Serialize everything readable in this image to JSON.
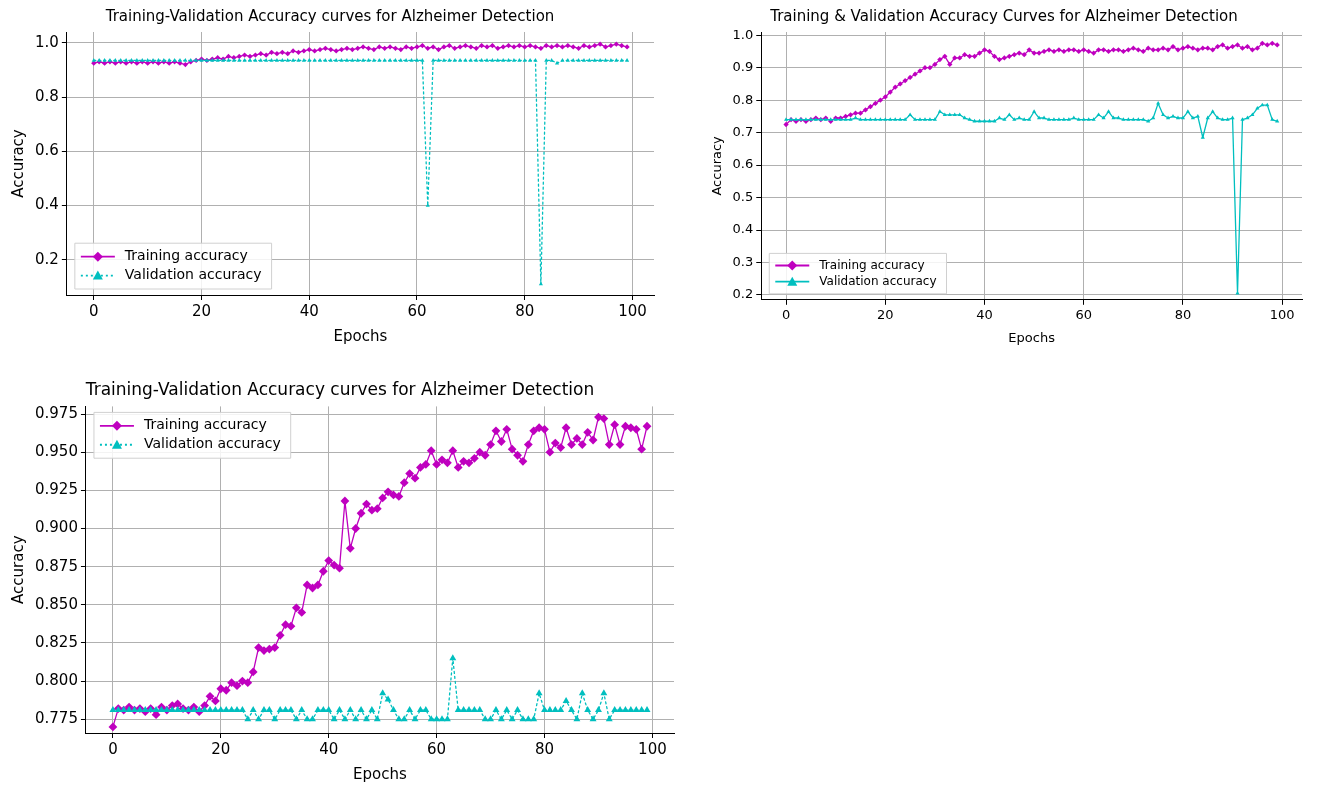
{
  "chart_data": [
    {
      "type": "line",
      "title": "Training-Validation Accuracy curves for Alzheimer Detection",
      "xlabel": "Epochs",
      "ylabel": "Accuracy",
      "x": [
        0,
        1,
        2,
        3,
        4,
        5,
        6,
        7,
        8,
        9,
        10,
        11,
        12,
        13,
        14,
        15,
        16,
        17,
        18,
        19,
        20,
        21,
        22,
        23,
        24,
        25,
        26,
        27,
        28,
        29,
        30,
        31,
        32,
        33,
        34,
        35,
        36,
        37,
        38,
        39,
        40,
        41,
        42,
        43,
        44,
        45,
        46,
        47,
        48,
        49,
        50,
        51,
        52,
        53,
        54,
        55,
        56,
        57,
        58,
        59,
        60,
        61,
        62,
        63,
        64,
        65,
        66,
        67,
        68,
        69,
        70,
        71,
        72,
        73,
        74,
        75,
        76,
        77,
        78,
        79,
        80,
        81,
        82,
        83,
        84,
        85,
        86,
        87,
        88,
        89,
        90,
        91,
        92,
        93,
        94,
        95,
        96,
        97,
        98,
        99
      ],
      "series": [
        {
          "name": "Training accuracy",
          "color": "#bf00bf",
          "marker": "diamond",
          "line_style": "solid",
          "values": [
            0.925,
            0.93,
            0.925,
            0.93,
            0.925,
            0.93,
            0.925,
            0.93,
            0.925,
            0.93,
            0.925,
            0.93,
            0.925,
            0.93,
            0.925,
            0.93,
            0.925,
            0.92,
            0.93,
            0.935,
            0.94,
            0.935,
            0.94,
            0.945,
            0.94,
            0.95,
            0.945,
            0.95,
            0.955,
            0.95,
            0.955,
            0.96,
            0.955,
            0.965,
            0.96,
            0.965,
            0.96,
            0.97,
            0.965,
            0.97,
            0.975,
            0.97,
            0.975,
            0.98,
            0.975,
            0.97,
            0.975,
            0.98,
            0.975,
            0.98,
            0.985,
            0.98,
            0.975,
            0.985,
            0.98,
            0.985,
            0.98,
            0.975,
            0.985,
            0.98,
            0.985,
            0.99,
            0.98,
            0.985,
            0.975,
            0.985,
            0.99,
            0.98,
            0.985,
            0.99,
            0.985,
            0.98,
            0.99,
            0.985,
            0.99,
            0.98,
            0.985,
            0.99,
            0.985,
            0.99,
            0.985,
            0.99,
            0.985,
            0.98,
            0.99,
            0.985,
            0.99,
            0.985,
            0.99,
            0.985,
            0.98,
            0.99,
            0.985,
            0.99,
            0.995,
            0.985,
            0.99,
            0.995,
            0.99,
            0.985
          ]
        },
        {
          "name": "Validation accuracy",
          "color": "#00bfbf",
          "marker": "triangle",
          "line_style": "dotted",
          "values": [
            0.935,
            0.935,
            0.935,
            0.935,
            0.935,
            0.935,
            0.935,
            0.935,
            0.935,
            0.935,
            0.935,
            0.935,
            0.935,
            0.935,
            0.935,
            0.935,
            0.935,
            0.935,
            0.935,
            0.935,
            0.935,
            0.935,
            0.935,
            0.935,
            0.935,
            0.935,
            0.935,
            0.935,
            0.935,
            0.935,
            0.935,
            0.935,
            0.935,
            0.935,
            0.935,
            0.935,
            0.935,
            0.935,
            0.935,
            0.935,
            0.935,
            0.935,
            0.935,
            0.935,
            0.935,
            0.935,
            0.935,
            0.935,
            0.935,
            0.935,
            0.935,
            0.935,
            0.935,
            0.935,
            0.935,
            0.935,
            0.935,
            0.935,
            0.935,
            0.935,
            0.935,
            0.935,
            0.4,
            0.935,
            0.935,
            0.935,
            0.935,
            0.935,
            0.935,
            0.935,
            0.935,
            0.935,
            0.935,
            0.935,
            0.935,
            0.935,
            0.935,
            0.935,
            0.935,
            0.935,
            0.935,
            0.935,
            0.935,
            0.11,
            0.935,
            0.935,
            0.925,
            0.935,
            0.935,
            0.935,
            0.935,
            0.935,
            0.935,
            0.935,
            0.935,
            0.935,
            0.935,
            0.935,
            0.935,
            0.935
          ]
        }
      ],
      "xlim": [
        -5,
        104
      ],
      "xticks": [
        0,
        20,
        40,
        60,
        80,
        100
      ],
      "ylim": [
        0.07,
        1.04
      ],
      "yticks": [
        {
          "value": 0.2,
          "label": "0.2"
        },
        {
          "value": 0.4,
          "label": "0.4"
        },
        {
          "value": 0.6,
          "label": "0.6"
        },
        {
          "value": 0.8,
          "label": "0.8"
        },
        {
          "value": 1.0,
          "label": "1.0"
        }
      ],
      "grid": true,
      "legend": "bottom left"
    },
    {
      "type": "line",
      "title": "Training & Validation Accuracy Curves for Alzheimer Detection",
      "xlabel": "Epochs",
      "ylabel": "Accuracy",
      "x": [
        0,
        1,
        2,
        3,
        4,
        5,
        6,
        7,
        8,
        9,
        10,
        11,
        12,
        13,
        14,
        15,
        16,
        17,
        18,
        19,
        20,
        21,
        22,
        23,
        24,
        25,
        26,
        27,
        28,
        29,
        30,
        31,
        32,
        33,
        34,
        35,
        36,
        37,
        38,
        39,
        40,
        41,
        42,
        43,
        44,
        45,
        46,
        47,
        48,
        49,
        50,
        51,
        52,
        53,
        54,
        55,
        56,
        57,
        58,
        59,
        60,
        61,
        62,
        63,
        64,
        65,
        66,
        67,
        68,
        69,
        70,
        71,
        72,
        73,
        74,
        75,
        76,
        77,
        78,
        79,
        80,
        81,
        82,
        83,
        84,
        85,
        86,
        87,
        88,
        89,
        90,
        91,
        92,
        93,
        94,
        95,
        96,
        97,
        98,
        99
      ],
      "series": [
        {
          "name": "Training accuracy",
          "color": "#bf00bf",
          "marker": "diamond",
          "line_style": "solid",
          "values": [
            0.725,
            0.74,
            0.735,
            0.74,
            0.735,
            0.74,
            0.745,
            0.74,
            0.745,
            0.735,
            0.745,
            0.745,
            0.75,
            0.755,
            0.76,
            0.76,
            0.77,
            0.78,
            0.79,
            0.8,
            0.81,
            0.825,
            0.84,
            0.85,
            0.86,
            0.87,
            0.88,
            0.89,
            0.9,
            0.9,
            0.91,
            0.925,
            0.935,
            0.91,
            0.93,
            0.93,
            0.94,
            0.935,
            0.935,
            0.945,
            0.955,
            0.95,
            0.935,
            0.925,
            0.93,
            0.935,
            0.94,
            0.945,
            0.94,
            0.955,
            0.945,
            0.945,
            0.95,
            0.955,
            0.95,
            0.955,
            0.95,
            0.955,
            0.955,
            0.95,
            0.955,
            0.95,
            0.945,
            0.955,
            0.955,
            0.95,
            0.955,
            0.955,
            0.95,
            0.955,
            0.96,
            0.955,
            0.95,
            0.96,
            0.955,
            0.955,
            0.96,
            0.955,
            0.965,
            0.955,
            0.96,
            0.965,
            0.96,
            0.955,
            0.96,
            0.96,
            0.955,
            0.965,
            0.97,
            0.96,
            0.965,
            0.97,
            0.96,
            0.965,
            0.955,
            0.96,
            0.975,
            0.97,
            0.975,
            0.97
          ]
        },
        {
          "name": "Validation accuracy",
          "color": "#00bfbf",
          "marker": "triangle",
          "line_style": "solid",
          "values": [
            0.74,
            0.74,
            0.74,
            0.74,
            0.74,
            0.74,
            0.74,
            0.74,
            0.74,
            0.74,
            0.74,
            0.74,
            0.74,
            0.74,
            0.745,
            0.74,
            0.74,
            0.74,
            0.74,
            0.74,
            0.74,
            0.74,
            0.74,
            0.74,
            0.74,
            0.755,
            0.74,
            0.74,
            0.74,
            0.74,
            0.74,
            0.765,
            0.755,
            0.755,
            0.755,
            0.755,
            0.745,
            0.74,
            0.735,
            0.735,
            0.735,
            0.735,
            0.735,
            0.745,
            0.74,
            0.755,
            0.74,
            0.745,
            0.74,
            0.74,
            0.765,
            0.745,
            0.745,
            0.74,
            0.74,
            0.74,
            0.74,
            0.74,
            0.745,
            0.74,
            0.74,
            0.74,
            0.74,
            0.755,
            0.745,
            0.765,
            0.745,
            0.745,
            0.74,
            0.74,
            0.74,
            0.74,
            0.74,
            0.735,
            0.745,
            0.79,
            0.755,
            0.745,
            0.75,
            0.745,
            0.745,
            0.765,
            0.745,
            0.75,
            0.685,
            0.745,
            0.765,
            0.745,
            0.74,
            0.74,
            0.745,
            0.205,
            0.74,
            0.745,
            0.755,
            0.775,
            0.785,
            0.785,
            0.74,
            0.735
          ]
        }
      ],
      "xlim": [
        -5,
        104
      ],
      "xticks": [
        0,
        20,
        40,
        60,
        80,
        100
      ],
      "ylim": [
        0.185,
        1.01
      ],
      "yticks": [
        0.2,
        0.3,
        0.4,
        0.5,
        0.6,
        0.7,
        0.8,
        0.9,
        {
          "value": 1.0,
          "label": "1.0"
        }
      ],
      "grid": true,
      "legend": "bottom left"
    },
    {
      "type": "line",
      "title": "Training-Validation Accuracy curves for Alzheimer Detection",
      "xlabel": "Epochs",
      "ylabel": "Accuracy",
      "x": [
        0,
        1,
        2,
        3,
        4,
        5,
        6,
        7,
        8,
        9,
        10,
        11,
        12,
        13,
        14,
        15,
        16,
        17,
        18,
        19,
        20,
        21,
        22,
        23,
        24,
        25,
        26,
        27,
        28,
        29,
        30,
        31,
        32,
        33,
        34,
        35,
        36,
        37,
        38,
        39,
        40,
        41,
        42,
        43,
        44,
        45,
        46,
        47,
        48,
        49,
        50,
        51,
        52,
        53,
        54,
        55,
        56,
        57,
        58,
        59,
        60,
        61,
        62,
        63,
        64,
        65,
        66,
        67,
        68,
        69,
        70,
        71,
        72,
        73,
        74,
        75,
        76,
        77,
        78,
        79,
        80,
        81,
        82,
        83,
        84,
        85,
        86,
        87,
        88,
        89,
        90,
        91,
        92,
        93,
        94,
        95,
        96,
        97,
        98,
        99
      ],
      "series": [
        {
          "name": "Training accuracy",
          "color": "#bf00bf",
          "marker": "diamond",
          "line_style": "solid",
          "values": [
            0.77,
            0.782,
            0.781,
            0.783,
            0.781,
            0.782,
            0.78,
            0.782,
            0.778,
            0.783,
            0.781,
            0.784,
            0.785,
            0.782,
            0.781,
            0.783,
            0.78,
            0.784,
            0.79,
            0.787,
            0.795,
            0.794,
            0.799,
            0.797,
            0.8,
            0.799,
            0.806,
            0.822,
            0.82,
            0.821,
            0.822,
            0.83,
            0.837,
            0.836,
            0.848,
            0.845,
            0.863,
            0.861,
            0.863,
            0.872,
            0.879,
            0.876,
            0.874,
            0.918,
            0.887,
            0.9,
            0.91,
            0.916,
            0.912,
            0.913,
            0.92,
            0.924,
            0.922,
            0.921,
            0.93,
            0.936,
            0.933,
            0.94,
            0.942,
            0.951,
            0.942,
            0.945,
            0.943,
            0.951,
            0.94,
            0.944,
            0.943,
            0.946,
            0.95,
            0.948,
            0.955,
            0.964,
            0.957,
            0.965,
            0.952,
            0.948,
            0.944,
            0.955,
            0.964,
            0.966,
            0.965,
            0.95,
            0.956,
            0.953,
            0.966,
            0.955,
            0.959,
            0.955,
            0.963,
            0.958,
            0.973,
            0.972,
            0.955,
            0.968,
            0.955,
            0.967,
            0.966,
            0.965,
            0.952,
            0.967
          ]
        },
        {
          "name": "Validation accuracy",
          "color": "#00bfbf",
          "marker": "triangle",
          "line_style": "dotted",
          "values": [
            0.781,
            0.781,
            0.781,
            0.781,
            0.781,
            0.781,
            0.781,
            0.781,
            0.781,
            0.781,
            0.781,
            0.781,
            0.781,
            0.781,
            0.781,
            0.781,
            0.781,
            0.781,
            0.781,
            0.781,
            0.781,
            0.781,
            0.781,
            0.781,
            0.781,
            0.775,
            0.781,
            0.775,
            0.781,
            0.781,
            0.775,
            0.781,
            0.781,
            0.781,
            0.775,
            0.781,
            0.775,
            0.775,
            0.781,
            0.781,
            0.781,
            0.775,
            0.781,
            0.775,
            0.781,
            0.775,
            0.781,
            0.775,
            0.781,
            0.775,
            0.792,
            0.788,
            0.781,
            0.775,
            0.775,
            0.781,
            0.775,
            0.781,
            0.781,
            0.775,
            0.775,
            0.775,
            0.775,
            0.815,
            0.781,
            0.781,
            0.781,
            0.781,
            0.781,
            0.775,
            0.775,
            0.781,
            0.775,
            0.781,
            0.775,
            0.781,
            0.775,
            0.775,
            0.775,
            0.792,
            0.781,
            0.781,
            0.781,
            0.781,
            0.787,
            0.781,
            0.775,
            0.792,
            0.781,
            0.775,
            0.781,
            0.792,
            0.775,
            0.781,
            0.781,
            0.781,
            0.781,
            0.781,
            0.781,
            0.781
          ]
        }
      ],
      "xlim": [
        -5,
        104
      ],
      "xticks": [
        0,
        20,
        40,
        60,
        80,
        100
      ],
      "ylim": [
        0.766,
        0.98
      ],
      "yticks": [
        {
          "value": 0.775,
          "label": "0.775"
        },
        {
          "value": 0.8,
          "label": "0.800"
        },
        {
          "value": 0.825,
          "label": "0.825"
        },
        {
          "value": 0.85,
          "label": "0.850"
        },
        {
          "value": 0.875,
          "label": "0.875"
        },
        {
          "value": 0.9,
          "label": "0.900"
        },
        {
          "value": 0.925,
          "label": "0.925"
        },
        {
          "value": 0.95,
          "label": "0.950"
        },
        {
          "value": 0.975,
          "label": "0.975"
        }
      ],
      "grid": true,
      "legend": "top left"
    }
  ]
}
